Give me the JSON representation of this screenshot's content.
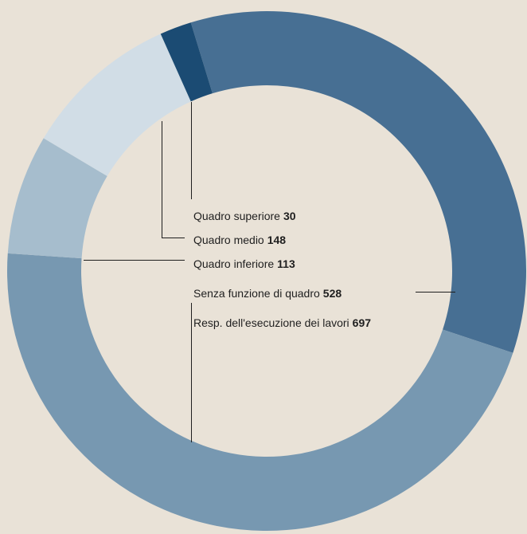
{
  "chart_data": {
    "type": "donut",
    "categories": [
      "Quadro superiore",
      "Quadro medio",
      "Quadro inferiore",
      "Senza funzione di quadro",
      "Resp. dell'esecuzione dei lavori"
    ],
    "values": [
      30,
      148,
      113,
      528,
      697
    ],
    "colors": [
      "#1b4b73",
      "#d1dde6",
      "#a6bdcd",
      "#476f93",
      "#7798b1"
    ]
  }
}
